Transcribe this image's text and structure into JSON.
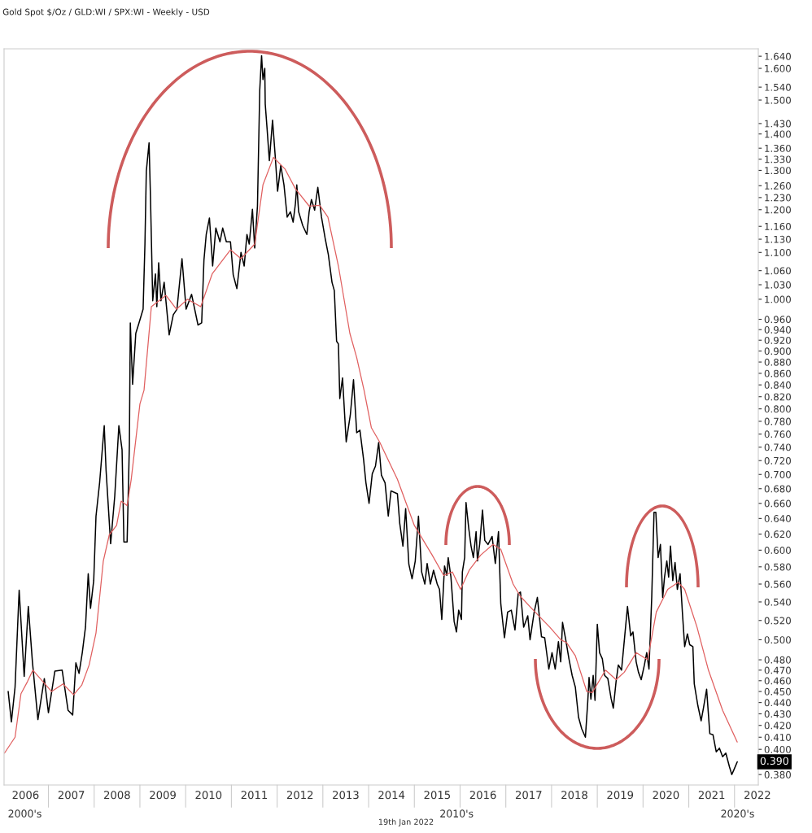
{
  "chart_data": {
    "type": "line",
    "title": "Gold Spot $/Oz / GLD:WI / SPX:WI - Weekly - USD",
    "log": "y",
    "grid": false,
    "legend": false,
    "xlim": [
      2006.03,
      2022.52
    ],
    "xticks": [
      {
        "value": 2006.5,
        "label": "2006"
      },
      {
        "value": 2007.5,
        "label": "2007"
      },
      {
        "value": 2008.5,
        "label": "2008"
      },
      {
        "value": 2009.5,
        "label": "2009"
      },
      {
        "value": 2010.5,
        "label": "2010"
      },
      {
        "value": 2011.5,
        "label": "2011"
      },
      {
        "value": 2012.5,
        "label": "2012"
      },
      {
        "value": 2013.5,
        "label": "2013"
      },
      {
        "value": 2014.5,
        "label": "2014"
      },
      {
        "value": 2015.5,
        "label": "2015"
      },
      {
        "value": 2016.5,
        "label": "2016"
      },
      {
        "value": 2017.5,
        "label": "2017"
      },
      {
        "value": 2018.5,
        "label": "2018"
      },
      {
        "value": 2019.5,
        "label": "2019"
      },
      {
        "value": 2020.5,
        "label": "2020"
      },
      {
        "value": 2021.5,
        "label": "2021"
      },
      {
        "value": 2022.5,
        "label": "2022"
      }
    ],
    "ylim": [
      0.372,
      1.665
    ],
    "yticks": [
      {
        "value": 1.64,
        "label": "1.640"
      },
      {
        "value": 1.6,
        "label": "1.600"
      },
      {
        "value": 1.54,
        "label": "1.540"
      },
      {
        "value": 1.5,
        "label": "1.500"
      },
      {
        "value": 1.43,
        "label": "1.430"
      },
      {
        "value": 1.4,
        "label": "1.400"
      },
      {
        "value": 1.36,
        "label": "1.360"
      },
      {
        "value": 1.33,
        "label": "1.330"
      },
      {
        "value": 1.3,
        "label": "1.300"
      },
      {
        "value": 1.26,
        "label": "1.260"
      },
      {
        "value": 1.23,
        "label": "1.230"
      },
      {
        "value": 1.2,
        "label": "1.200"
      },
      {
        "value": 1.16,
        "label": "1.160"
      },
      {
        "value": 1.13,
        "label": "1.130"
      },
      {
        "value": 1.1,
        "label": "1.100"
      },
      {
        "value": 1.06,
        "label": "1.060"
      },
      {
        "value": 1.03,
        "label": "1.030"
      },
      {
        "value": 1.0,
        "label": "1.000"
      },
      {
        "value": 0.96,
        "label": "0.960"
      },
      {
        "value": 0.94,
        "label": "0.940"
      },
      {
        "value": 0.92,
        "label": "0.920"
      },
      {
        "value": 0.9,
        "label": "0.900"
      },
      {
        "value": 0.88,
        "label": "0.880"
      },
      {
        "value": 0.86,
        "label": "0.860"
      },
      {
        "value": 0.84,
        "label": "0.840"
      },
      {
        "value": 0.82,
        "label": "0.820"
      },
      {
        "value": 0.8,
        "label": "0.800"
      },
      {
        "value": 0.78,
        "label": "0.780"
      },
      {
        "value": 0.76,
        "label": "0.760"
      },
      {
        "value": 0.74,
        "label": "0.740"
      },
      {
        "value": 0.72,
        "label": "0.720"
      },
      {
        "value": 0.7,
        "label": "0.700"
      },
      {
        "value": 0.68,
        "label": "0.680"
      },
      {
        "value": 0.66,
        "label": "0.660"
      },
      {
        "value": 0.64,
        "label": "0.640"
      },
      {
        "value": 0.62,
        "label": "0.620"
      },
      {
        "value": 0.6,
        "label": "0.600"
      },
      {
        "value": 0.58,
        "label": "0.580"
      },
      {
        "value": 0.56,
        "label": "0.560"
      },
      {
        "value": 0.54,
        "label": "0.540"
      },
      {
        "value": 0.52,
        "label": "0.520"
      },
      {
        "value": 0.5,
        "label": "0.500"
      },
      {
        "value": 0.48,
        "label": "0.480"
      },
      {
        "value": 0.47,
        "label": "0.470"
      },
      {
        "value": 0.46,
        "label": "0.460"
      },
      {
        "value": 0.45,
        "label": "0.450"
      },
      {
        "value": 0.44,
        "label": "0.440"
      },
      {
        "value": 0.43,
        "label": "0.430"
      },
      {
        "value": 0.42,
        "label": "0.420"
      },
      {
        "value": 0.41,
        "label": "0.410"
      },
      {
        "value": 0.4,
        "label": "0.400"
      },
      {
        "value": 0.38,
        "label": "0.380"
      }
    ],
    "series": [
      {
        "color": "#000000",
        "x": [
          2006.12,
          2006.19,
          2006.27,
          2006.36,
          2006.47,
          2006.56,
          2006.65,
          2006.77,
          2006.91,
          2007.0,
          2007.14,
          2007.3,
          2007.43,
          2007.53,
          2007.6,
          2007.67,
          2007.74,
          2007.81,
          2007.87,
          2007.92,
          2007.99,
          2008.04,
          2008.12,
          2008.22,
          2008.26,
          2008.36,
          2008.45,
          2008.54,
          2008.61,
          2008.65,
          2008.72,
          2008.77,
          2008.79,
          2008.84,
          2008.91,
          2008.98,
          2009.07,
          2009.11,
          2009.14,
          2009.2,
          2009.23,
          2009.28,
          2009.34,
          2009.37,
          2009.41,
          2009.46,
          2009.53,
          2009.64,
          2009.73,
          2009.81,
          2009.92,
          2010.01,
          2010.13,
          2010.27,
          2010.35,
          2010.4,
          2010.45,
          2010.52,
          2010.59,
          2010.66,
          2010.75,
          2010.81,
          2010.89,
          2010.98,
          2011.04,
          2011.12,
          2011.21,
          2011.28,
          2011.34,
          2011.39,
          2011.46,
          2011.51,
          2011.57,
          2011.62,
          2011.66,
          2011.69,
          2011.73,
          2011.74,
          2011.78,
          2011.83,
          2011.9,
          2011.96,
          2012.01,
          2012.08,
          2012.15,
          2012.22,
          2012.29,
          2012.35,
          2012.4,
          2012.43,
          2012.47,
          2012.56,
          2012.65,
          2012.7,
          2012.75,
          2012.82,
          2012.89,
          2012.97,
          2013.05,
          2013.12,
          2013.2,
          2013.25,
          2013.3,
          2013.34,
          2013.37,
          2013.43,
          2013.51,
          2013.6,
          2013.67,
          2013.74,
          2013.81,
          2013.89,
          2013.94,
          2014.01,
          2014.08,
          2014.15,
          2014.22,
          2014.28,
          2014.36,
          2014.43,
          2014.49,
          2014.56,
          2014.63,
          2014.68,
          2014.75,
          2014.81,
          2014.88,
          2014.95,
          2015.02,
          2015.09,
          2015.16,
          2015.23,
          2015.28,
          2015.35,
          2015.42,
          2015.5,
          2015.55,
          2015.6,
          2015.66,
          2015.71,
          2015.74,
          2015.8,
          2015.87,
          2015.92,
          2015.97,
          2016.03,
          2016.05,
          2016.1,
          2016.13,
          2016.19,
          2016.24,
          2016.29,
          2016.35,
          2016.38,
          2016.43,
          2016.49,
          2016.54,
          2016.61,
          2016.7,
          2016.77,
          2016.84,
          2016.89,
          2016.97,
          2017.04,
          2017.12,
          2017.2,
          2017.27,
          2017.32,
          2017.39,
          2017.48,
          2017.53,
          2017.62,
          2017.69,
          2017.78,
          2017.85,
          2017.94,
          2018.01,
          2018.08,
          2018.15,
          2018.2,
          2018.24,
          2018.31,
          2018.38,
          2018.45,
          2018.52,
          2018.59,
          2018.66,
          2018.74,
          2018.79,
          2018.82,
          2018.86,
          2018.91,
          2018.95,
          2019.0,
          2019.05,
          2019.11,
          2019.16,
          2019.23,
          2019.3,
          2019.35,
          2019.41,
          2019.46,
          2019.53,
          2019.6,
          2019.66,
          2019.73,
          2019.78,
          2019.85,
          2019.9,
          2019.96,
          2020.03,
          2020.08,
          2020.13,
          2020.19,
          2020.24,
          2020.28,
          2020.33,
          2020.38,
          2020.43,
          2020.47,
          2020.52,
          2020.56,
          2020.6,
          2020.65,
          2020.7,
          2020.75,
          2020.81,
          2020.86,
          2020.91,
          2020.97,
          2021.02,
          2021.09,
          2021.12,
          2021.2,
          2021.27,
          2021.32,
          2021.39,
          2021.46,
          2021.53,
          2021.6,
          2021.67,
          2021.74,
          2021.81,
          2021.89,
          2021.94,
          2021.99,
          2022.06
        ],
        "values": [
          0.45,
          0.423,
          0.454,
          0.553,
          0.464,
          0.535,
          0.478,
          0.425,
          0.462,
          0.431,
          0.469,
          0.47,
          0.433,
          0.429,
          0.477,
          0.467,
          0.487,
          0.513,
          0.572,
          0.533,
          0.564,
          0.643,
          0.689,
          0.773,
          0.706,
          0.608,
          0.67,
          0.773,
          0.736,
          0.61,
          0.61,
          0.744,
          0.953,
          0.841,
          0.933,
          0.953,
          0.98,
          1.119,
          1.298,
          1.375,
          1.235,
          0.997,
          1.053,
          0.985,
          1.077,
          0.997,
          1.035,
          0.93,
          0.969,
          0.98,
          1.086,
          0.98,
          1.01,
          0.949,
          0.953,
          1.083,
          1.141,
          1.18,
          1.07,
          1.156,
          1.124,
          1.156,
          1.124,
          1.124,
          1.051,
          1.022,
          1.1,
          1.07,
          1.141,
          1.119,
          1.201,
          1.11,
          1.209,
          1.531,
          1.642,
          1.564,
          1.6,
          1.488,
          1.416,
          1.326,
          1.44,
          1.335,
          1.246,
          1.313,
          1.262,
          1.182,
          1.195,
          1.17,
          1.215,
          1.262,
          1.195,
          1.162,
          1.141,
          1.195,
          1.225,
          1.199,
          1.256,
          1.182,
          1.132,
          1.095,
          1.035,
          1.018,
          0.918,
          0.913,
          0.817,
          0.852,
          0.748,
          0.79,
          0.849,
          0.762,
          0.766,
          0.722,
          0.689,
          0.66,
          0.701,
          0.712,
          0.747,
          0.699,
          0.688,
          0.643,
          0.677,
          0.675,
          0.673,
          0.634,
          0.605,
          0.653,
          0.583,
          0.566,
          0.587,
          0.643,
          0.574,
          0.56,
          0.584,
          0.56,
          0.576,
          0.56,
          0.554,
          0.521,
          0.581,
          0.57,
          0.591,
          0.568,
          0.519,
          0.508,
          0.531,
          0.521,
          0.574,
          0.591,
          0.661,
          0.627,
          0.605,
          0.591,
          0.623,
          0.587,
          0.608,
          0.651,
          0.612,
          0.607,
          0.617,
          0.584,
          0.623,
          0.538,
          0.502,
          0.529,
          0.531,
          0.51,
          0.549,
          0.551,
          0.513,
          0.525,
          0.5,
          0.529,
          0.545,
          0.503,
          0.502,
          0.471,
          0.487,
          0.471,
          0.498,
          0.478,
          0.518,
          0.5,
          0.481,
          0.465,
          0.454,
          0.427,
          0.417,
          0.41,
          0.44,
          0.463,
          0.443,
          0.465,
          0.442,
          0.516,
          0.487,
          0.481,
          0.465,
          0.462,
          0.444,
          0.435,
          0.459,
          0.475,
          0.47,
          0.504,
          0.535,
          0.504,
          0.508,
          0.478,
          0.468,
          0.461,
          0.475,
          0.487,
          0.471,
          0.545,
          0.648,
          0.648,
          0.591,
          0.607,
          0.545,
          0.568,
          0.587,
          0.568,
          0.605,
          0.564,
          0.585,
          0.554,
          0.572,
          0.529,
          0.493,
          0.506,
          0.495,
          0.493,
          0.457,
          0.437,
          0.424,
          0.435,
          0.452,
          0.413,
          0.412,
          0.398,
          0.401,
          0.394,
          0.397,
          0.386,
          0.38,
          0.384,
          0.39
        ]
      },
      {
        "color": "#e06060",
        "x": [
          2006.04,
          2006.27,
          2006.4,
          2006.54,
          2006.66,
          2006.82,
          2007.07,
          2007.32,
          2007.55,
          2007.73,
          2007.89,
          2008.04,
          2008.2,
          2008.33,
          2008.49,
          2008.59,
          2008.72,
          2008.81,
          2009.0,
          2009.09,
          2009.25,
          2009.57,
          2009.8,
          2010.04,
          2010.33,
          2010.58,
          2010.98,
          2011.21,
          2011.51,
          2011.69,
          2011.92,
          2012.17,
          2012.4,
          2012.7,
          2012.93,
          2013.11,
          2013.34,
          2013.59,
          2013.74,
          2013.9,
          2014.06,
          2014.24,
          2014.63,
          2015.0,
          2015.39,
          2015.64,
          2015.83,
          2016.01,
          2016.2,
          2016.45,
          2016.72,
          2016.89,
          2017.16,
          2017.32,
          2017.64,
          2017.96,
          2018.2,
          2018.33,
          2018.52,
          2018.77,
          2018.89,
          2019.18,
          2019.41,
          2019.59,
          2019.85,
          2020.1,
          2020.29,
          2020.54,
          2020.77,
          2020.91,
          2021.18,
          2021.43,
          2021.74,
          2022.06
        ],
        "values": [
          0.397,
          0.41,
          0.448,
          0.459,
          0.47,
          0.462,
          0.45,
          0.457,
          0.447,
          0.456,
          0.475,
          0.507,
          0.587,
          0.619,
          0.631,
          0.663,
          0.657,
          0.693,
          0.808,
          0.831,
          0.985,
          1.008,
          0.98,
          1.0,
          0.985,
          1.053,
          1.106,
          1.086,
          1.119,
          1.262,
          1.335,
          1.304,
          1.252,
          1.209,
          1.211,
          1.182,
          1.07,
          0.933,
          0.888,
          0.831,
          0.77,
          0.748,
          0.693,
          0.631,
          0.594,
          0.57,
          0.574,
          0.554,
          0.576,
          0.594,
          0.607,
          0.601,
          0.56,
          0.546,
          0.529,
          0.513,
          0.5,
          0.497,
          0.484,
          0.45,
          0.449,
          0.47,
          0.461,
          0.468,
          0.487,
          0.48,
          0.529,
          0.554,
          0.562,
          0.554,
          0.513,
          0.47,
          0.433,
          0.406
        ]
      }
    ],
    "annotations": [
      {
        "text": "0.390",
        "x": 2022.06,
        "y": 0.39
      },
      "2000's",
      "2010's",
      "2020's",
      "19th Jan 2022"
    ]
  }
}
